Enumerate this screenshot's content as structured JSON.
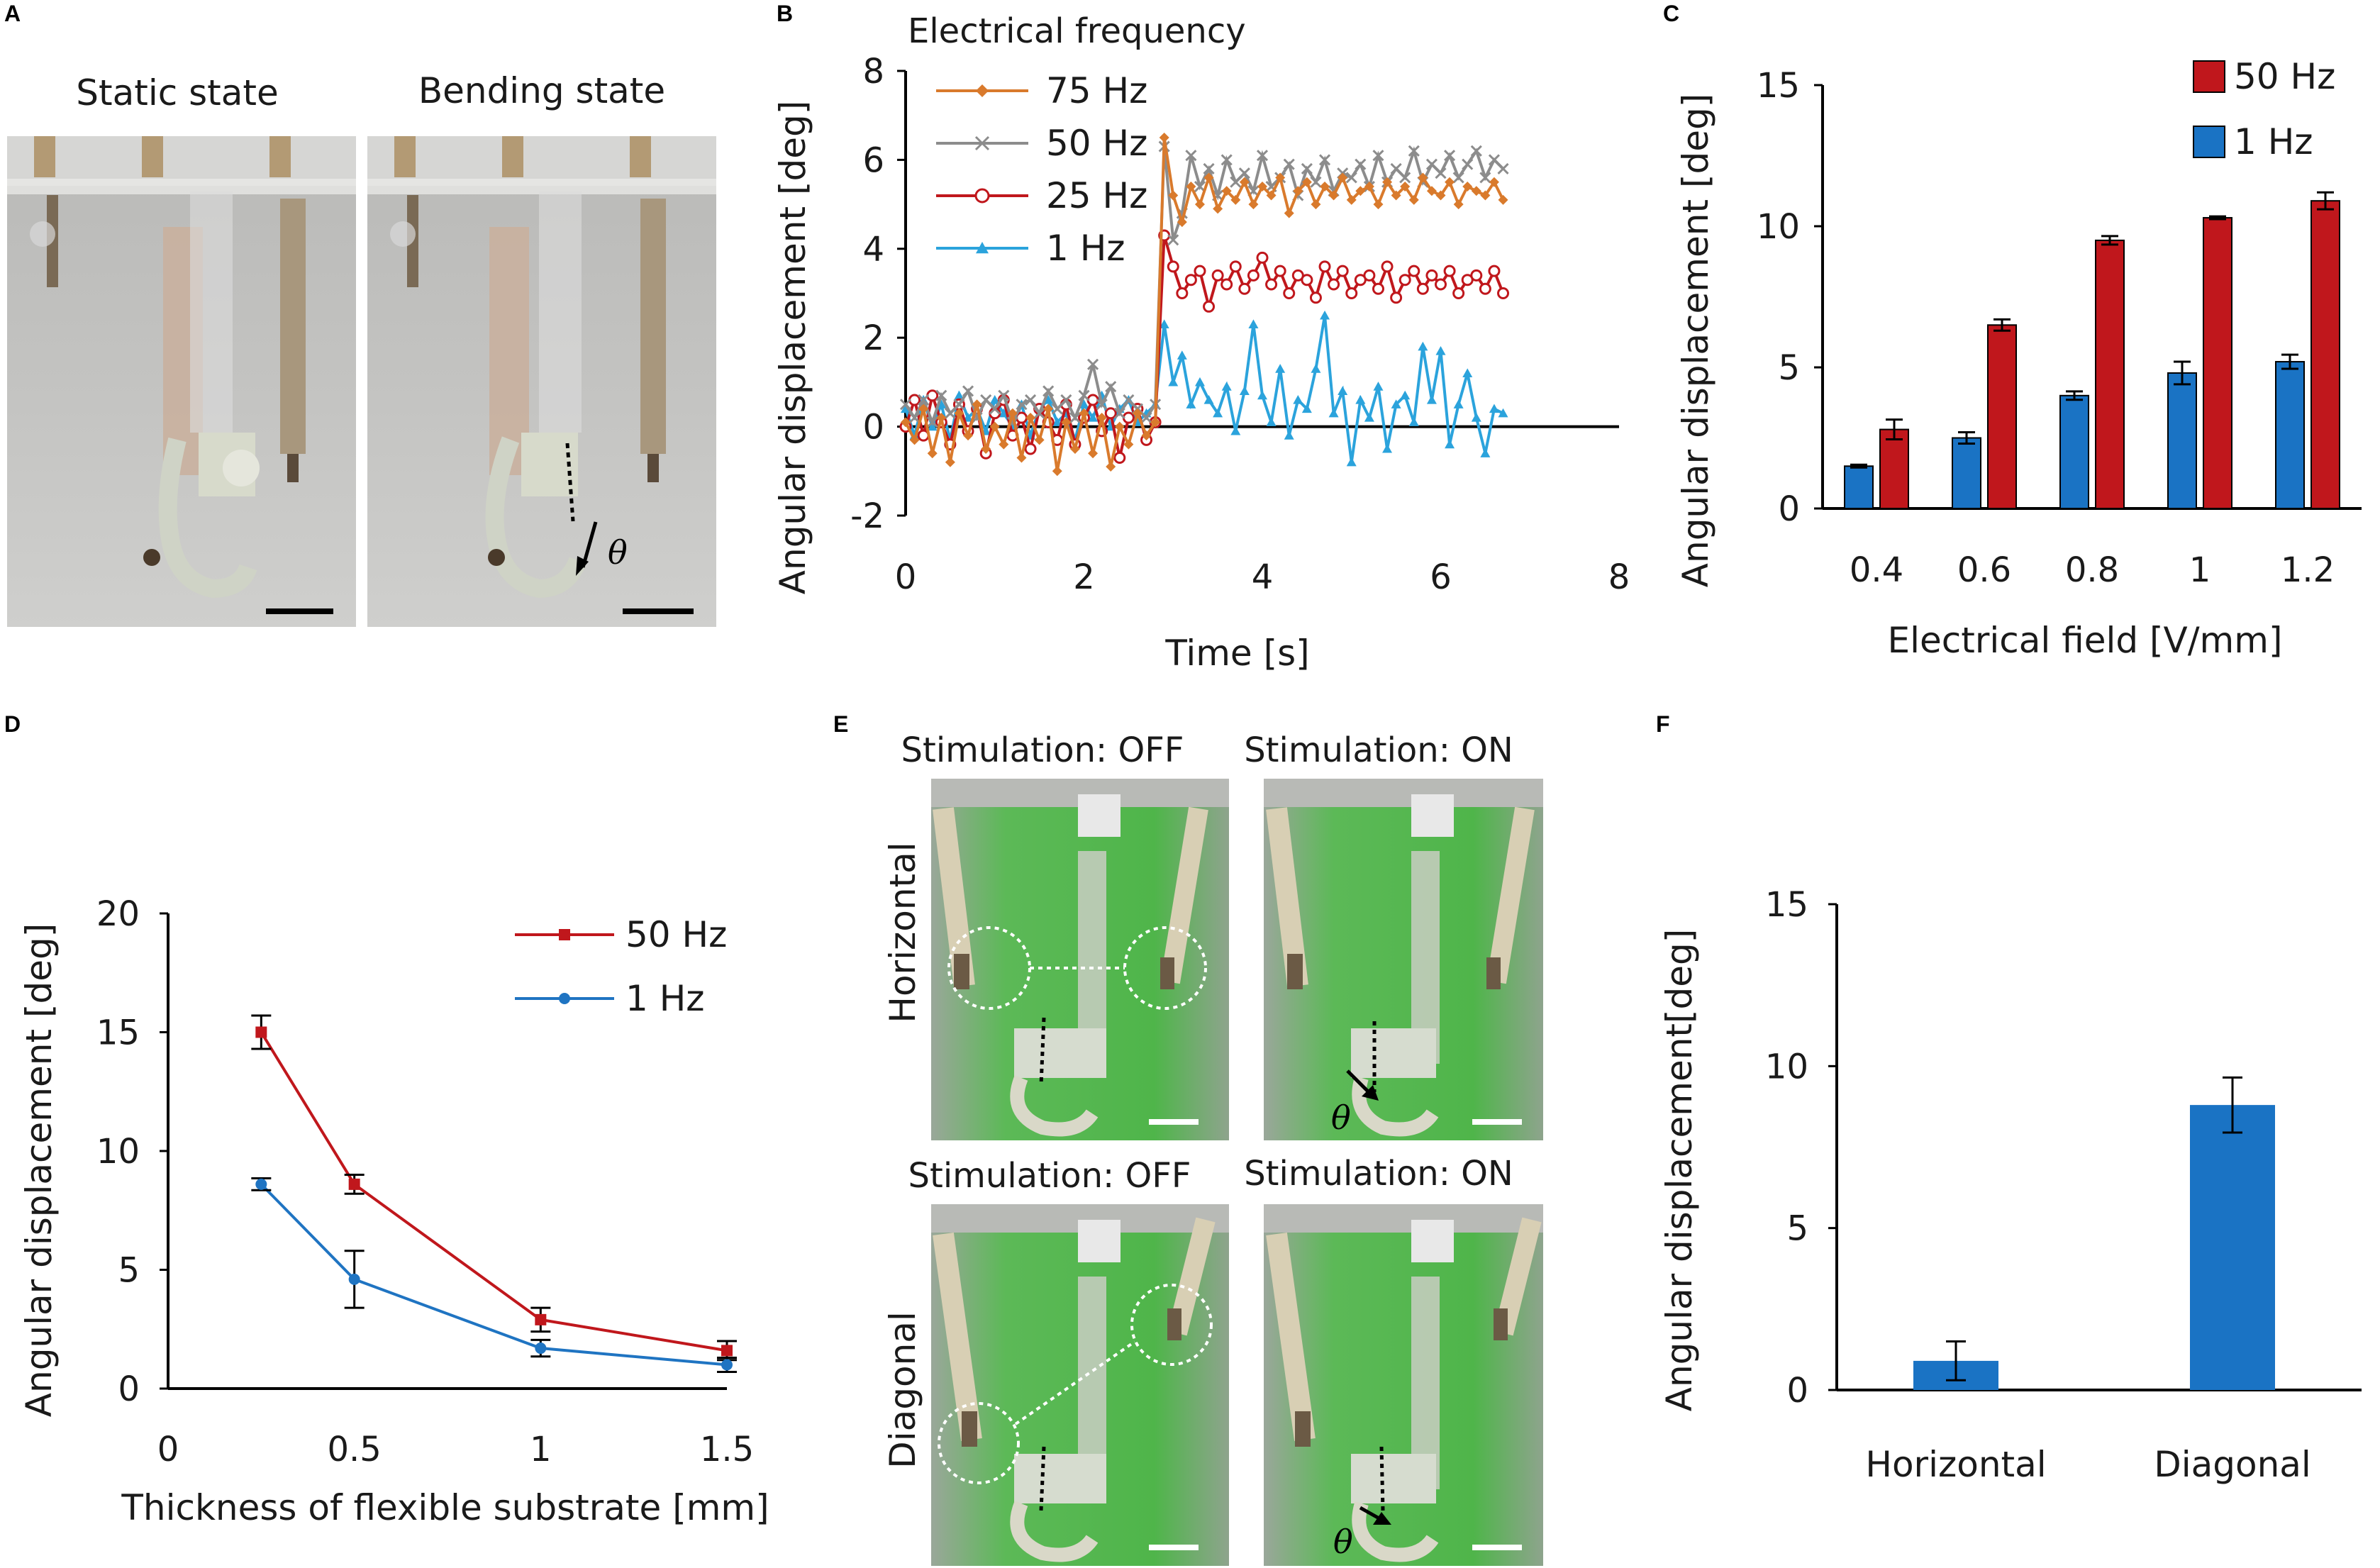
{
  "panels": {
    "A": {
      "letter": "A",
      "left_title": "Static state",
      "right_title": "Bending state",
      "theta": "θ"
    },
    "B": {
      "letter": "B"
    },
    "C": {
      "letter": "C"
    },
    "D": {
      "letter": "D"
    },
    "E": {
      "letter": "E",
      "top_left_title": "Stimulation: OFF",
      "top_right_title": "Stimulation: ON",
      "bottom_left_title": "Stimulation: OFF",
      "bottom_right_title": "Stimulation: ON",
      "row_top": "Horizontal",
      "row_bottom": "Diagonal",
      "theta": "θ"
    },
    "F": {
      "letter": "F"
    }
  },
  "colors": {
    "orange": "#d97a2c",
    "gray": "#8c8c8c",
    "red": "#c0171c",
    "blue": "#1a73c4",
    "lightblue": "#2ba3dc",
    "darkblue": "#1f64b0",
    "green": "#4fb54a"
  },
  "chart_data": [
    {
      "id": "B",
      "type": "line",
      "title": "",
      "legend_title": "Electrical frequency",
      "xlabel": "Time [s]",
      "ylabel": "Angular displacement [deg]",
      "xlim": [
        0,
        8
      ],
      "ylim": [
        -2,
        8
      ],
      "xticks": [
        0,
        2,
        4,
        6,
        8
      ],
      "yticks": [
        -2,
        0,
        2,
        4,
        6,
        8
      ],
      "legend_position": "top-left",
      "series": [
        {
          "name": "75 Hz",
          "color": "#d97a2c",
          "marker": "diamond",
          "x": [
            0,
            0.1,
            0.2,
            0.3,
            0.4,
            0.5,
            0.6,
            0.7,
            0.8,
            0.9,
            1.0,
            1.1,
            1.2,
            1.3,
            1.4,
            1.5,
            1.6,
            1.7,
            1.8,
            1.9,
            2.0,
            2.1,
            2.2,
            2.3,
            2.4,
            2.5,
            2.6,
            2.7,
            2.8,
            2.9,
            3.0,
            3.1,
            3.2,
            3.3,
            3.4,
            3.5,
            3.6,
            3.7,
            3.8,
            3.9,
            4.0,
            4.1,
            4.2,
            4.3,
            4.4,
            4.5,
            4.6,
            4.7,
            4.8,
            4.9,
            5.0,
            5.1,
            5.2,
            5.3,
            5.4,
            5.5,
            5.6,
            5.7,
            5.8,
            5.9,
            6.0,
            6.1,
            6.2,
            6.3,
            6.4,
            6.5,
            6.6,
            6.7
          ],
          "y": [
            0.1,
            -0.3,
            0.4,
            -0.6,
            0.2,
            -0.8,
            0.3,
            -0.2,
            0.5,
            -0.5,
            0.0,
            -0.4,
            0.3,
            -0.7,
            0.2,
            -0.3,
            0.4,
            -1.0,
            0.1,
            -0.5,
            0.3,
            -0.6,
            0.2,
            -0.9,
            0.0,
            -0.4,
            0.3,
            -0.2,
            0.1,
            6.5,
            5.2,
            4.6,
            5.4,
            5.0,
            5.6,
            4.9,
            5.3,
            5.1,
            5.5,
            5.0,
            5.4,
            5.2,
            5.6,
            4.8,
            5.3,
            5.5,
            5.0,
            5.4,
            5.2,
            5.6,
            5.1,
            5.3,
            5.4,
            5.0,
            5.5,
            5.2,
            5.4,
            5.1,
            5.6,
            5.3,
            5.2,
            5.5,
            5.0,
            5.4,
            5.3,
            5.2,
            5.5,
            5.1
          ]
        },
        {
          "name": "50 Hz",
          "color": "#8c8c8c",
          "marker": "x",
          "x": [
            0,
            0.1,
            0.2,
            0.3,
            0.4,
            0.5,
            0.6,
            0.7,
            0.8,
            0.9,
            1.0,
            1.1,
            1.2,
            1.3,
            1.4,
            1.5,
            1.6,
            1.7,
            1.8,
            1.9,
            2.0,
            2.1,
            2.2,
            2.3,
            2.4,
            2.5,
            2.6,
            2.7,
            2.8,
            2.9,
            3.0,
            3.1,
            3.2,
            3.3,
            3.4,
            3.5,
            3.6,
            3.7,
            3.8,
            3.9,
            4.0,
            4.1,
            4.2,
            4.3,
            4.4,
            4.5,
            4.6,
            4.7,
            4.8,
            4.9,
            5.0,
            5.1,
            5.2,
            5.3,
            5.4,
            5.5,
            5.6,
            5.7,
            5.8,
            5.9,
            6.0,
            6.1,
            6.2,
            6.3,
            6.4,
            6.5,
            6.6,
            6.7
          ],
          "y": [
            0.5,
            0.2,
            0.6,
            0.1,
            0.7,
            0.3,
            0.5,
            0.8,
            0.2,
            0.6,
            0.4,
            0.7,
            0.1,
            0.5,
            0.6,
            0.3,
            0.8,
            0.4,
            0.6,
            0.2,
            0.7,
            1.4,
            0.5,
            0.9,
            0.3,
            0.6,
            0.4,
            0.2,
            0.5,
            6.3,
            4.2,
            4.8,
            6.1,
            5.4,
            5.8,
            5.2,
            6.0,
            5.5,
            5.7,
            5.3,
            6.1,
            5.4,
            5.6,
            5.9,
            5.2,
            5.8,
            5.5,
            6.0,
            5.3,
            5.7,
            5.6,
            5.9,
            5.4,
            6.1,
            5.5,
            5.8,
            5.6,
            6.2,
            5.5,
            5.9,
            5.7,
            6.1,
            5.6,
            5.9,
            6.2,
            5.6,
            6.0,
            5.8
          ]
        },
        {
          "name": "25 Hz",
          "color": "#c0171c",
          "marker": "circle",
          "x": [
            0,
            0.1,
            0.2,
            0.3,
            0.4,
            0.5,
            0.6,
            0.7,
            0.8,
            0.9,
            1.0,
            1.1,
            1.2,
            1.3,
            1.4,
            1.5,
            1.6,
            1.7,
            1.8,
            1.9,
            2.0,
            2.1,
            2.2,
            2.3,
            2.4,
            2.5,
            2.6,
            2.7,
            2.8,
            2.9,
            3.0,
            3.1,
            3.2,
            3.3,
            3.4,
            3.5,
            3.6,
            3.7,
            3.8,
            3.9,
            4.0,
            4.1,
            4.2,
            4.3,
            4.4,
            4.5,
            4.6,
            4.7,
            4.8,
            4.9,
            5.0,
            5.1,
            5.2,
            5.3,
            5.4,
            5.5,
            5.6,
            5.7,
            5.8,
            5.9,
            6.0,
            6.1,
            6.2,
            6.3,
            6.4,
            6.5,
            6.6,
            6.7
          ],
          "y": [
            0.0,
            0.6,
            -0.2,
            0.7,
            0.1,
            -0.4,
            0.5,
            -0.1,
            0.4,
            -0.6,
            0.3,
            0.6,
            -0.2,
            0.2,
            -0.5,
            0.4,
            0.1,
            -0.3,
            0.5,
            -0.4,
            0.2,
            0.6,
            -0.1,
            0.3,
            -0.7,
            0.2,
            0.4,
            -0.3,
            0.1,
            4.3,
            3.6,
            3.0,
            3.3,
            3.5,
            2.7,
            3.4,
            3.2,
            3.6,
            3.1,
            3.4,
            3.8,
            3.2,
            3.5,
            3.0,
            3.4,
            3.3,
            2.9,
            3.6,
            3.2,
            3.5,
            3.0,
            3.3,
            3.4,
            3.1,
            3.6,
            2.9,
            3.3,
            3.5,
            3.1,
            3.4,
            3.2,
            3.5,
            3.0,
            3.3,
            3.4,
            3.1,
            3.5,
            3.0
          ]
        },
        {
          "name": "1 Hz",
          "color": "#2ba3dc",
          "marker": "triangle",
          "x": [
            0,
            0.1,
            0.2,
            0.3,
            0.4,
            0.5,
            0.6,
            0.7,
            0.8,
            0.9,
            1.0,
            1.1,
            1.2,
            1.3,
            1.4,
            1.5,
            1.6,
            1.7,
            1.8,
            1.9,
            2.0,
            2.1,
            2.2,
            2.3,
            2.4,
            2.5,
            2.6,
            2.7,
            2.8,
            2.9,
            3.0,
            3.1,
            3.2,
            3.3,
            3.4,
            3.5,
            3.6,
            3.7,
            3.8,
            3.9,
            4.0,
            4.1,
            4.2,
            4.3,
            4.4,
            4.5,
            4.6,
            4.7,
            4.8,
            4.9,
            5.0,
            5.1,
            5.2,
            5.3,
            5.4,
            5.5,
            5.6,
            5.7,
            5.8,
            5.9,
            6.0,
            6.1,
            6.2,
            6.3,
            6.4,
            6.5,
            6.6,
            6.7
          ],
          "y": [
            0.4,
            -0.2,
            0.6,
            0.0,
            0.5,
            -0.3,
            0.7,
            0.2,
            0.4,
            -0.1,
            0.6,
            0.3,
            0.0,
            0.5,
            -0.2,
            0.4,
            0.6,
            0.1,
            0.3,
            -0.3,
            0.5,
            0.2,
            0.7,
            0.0,
            0.4,
            0.6,
            0.1,
            0.3,
            0.5,
            2.3,
            1.0,
            1.6,
            0.5,
            1.0,
            0.6,
            0.3,
            0.9,
            -0.1,
            0.8,
            2.3,
            0.7,
            0.1,
            1.3,
            -0.2,
            0.6,
            0.4,
            1.3,
            2.5,
            0.3,
            0.8,
            -0.8,
            0.6,
            0.2,
            0.9,
            -0.5,
            0.5,
            0.7,
            0.1,
            1.8,
            0.6,
            1.7,
            -0.4,
            0.5,
            1.2,
            0.2,
            -0.6,
            0.4,
            0.3
          ]
        }
      ]
    },
    {
      "id": "C",
      "type": "bar",
      "title": "",
      "xlabel": "Electrical field [V/mm]",
      "ylabel": "Angular displacement [deg]",
      "categories": [
        "0.4",
        "0.6",
        "0.8",
        "1",
        "1.2"
      ],
      "ylim": [
        0,
        15
      ],
      "yticks": [
        0,
        5,
        10,
        15
      ],
      "legend_position": "top-right",
      "series": [
        {
          "name": "50 Hz",
          "color": "#c0171c",
          "values": [
            2.8,
            6.5,
            9.5,
            10.3,
            10.9
          ],
          "errors": [
            0.35,
            0.2,
            0.15,
            0.05,
            0.3
          ]
        },
        {
          "name": "1 Hz",
          "color": "#1a73c4",
          "values": [
            1.5,
            2.5,
            4.0,
            4.8,
            5.2
          ],
          "errors": [
            0.05,
            0.2,
            0.15,
            0.4,
            0.25
          ]
        }
      ]
    },
    {
      "id": "D",
      "type": "line",
      "title": "",
      "xlabel": "Thickness of flexible substrate [mm]",
      "ylabel": "Angular displacement [deg]",
      "xlim": [
        0,
        1.5
      ],
      "ylim": [
        0,
        20
      ],
      "xticks": [
        0,
        0.5,
        1,
        1.5
      ],
      "yticks": [
        0,
        5,
        10,
        15,
        20
      ],
      "legend_position": "top-right",
      "series": [
        {
          "name": "50 Hz",
          "color": "#c0171c",
          "marker": "square",
          "x": [
            0.25,
            0.5,
            1,
            1.5
          ],
          "y": [
            15.0,
            8.6,
            2.9,
            1.6
          ],
          "errors": [
            0.7,
            0.4,
            0.5,
            0.4
          ]
        },
        {
          "name": "1 Hz",
          "color": "#1f74c2",
          "marker": "circle",
          "x": [
            0.25,
            0.5,
            1,
            1.5
          ],
          "y": [
            8.6,
            4.6,
            1.7,
            1.0
          ],
          "errors": [
            0.25,
            1.2,
            0.35,
            0.3
          ]
        }
      ]
    },
    {
      "id": "F",
      "type": "bar",
      "title": "",
      "xlabel": "",
      "ylabel": "Angular displacement[deg]",
      "categories": [
        "Horizontal",
        "Diagonal"
      ],
      "ylim": [
        0,
        15
      ],
      "yticks": [
        0,
        5,
        10,
        15
      ],
      "series": [
        {
          "name": "",
          "color": "#1a73c4",
          "values": [
            0.9,
            8.8
          ],
          "errors": [
            0.6,
            0.85
          ]
        }
      ]
    }
  ]
}
